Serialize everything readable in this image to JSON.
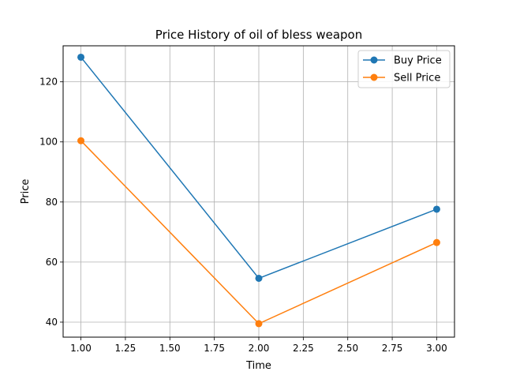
{
  "chart_data": {
    "type": "line",
    "title": "Price History of oil of bless weapon",
    "xlabel": "Time",
    "ylabel": "Price",
    "x": [
      1.0,
      2.0,
      3.0
    ],
    "series": [
      {
        "name": "Buy Price",
        "values": [
          128.2,
          54.6,
          77.6
        ],
        "color": "#1f77b4"
      },
      {
        "name": "Sell Price",
        "values": [
          100.4,
          39.5,
          66.5
        ],
        "color": "#ff7f0e"
      }
    ],
    "xlim": [
      0.9,
      3.1
    ],
    "ylim": [
      35,
      132
    ],
    "xticks": [
      1.0,
      1.25,
      1.5,
      1.75,
      2.0,
      2.25,
      2.5,
      2.75,
      3.0
    ],
    "xtick_labels": [
      "1.00",
      "1.25",
      "1.50",
      "1.75",
      "2.00",
      "2.25",
      "2.50",
      "2.75",
      "3.00"
    ],
    "yticks": [
      40,
      60,
      80,
      100,
      120
    ],
    "ytick_labels": [
      "40",
      "60",
      "80",
      "100",
      "120"
    ],
    "grid": true,
    "legend": "top-right",
    "marker": "circle"
  }
}
